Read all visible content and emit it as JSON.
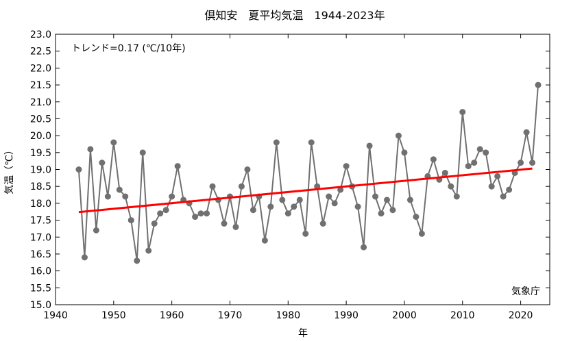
{
  "chart_data": {
    "type": "line",
    "title": "倶知安　夏平均気温　1944-2023年",
    "xlabel": "年",
    "ylabel": "気温（℃）",
    "xlim": [
      1940,
      2025
    ],
    "ylim": [
      15.0,
      23.0
    ],
    "x_ticks": [
      1940,
      1950,
      1960,
      1970,
      1980,
      1990,
      2000,
      2010,
      2020
    ],
    "y_ticks": [
      "15.0",
      "15.5",
      "16.0",
      "16.5",
      "17.0",
      "17.5",
      "18.0",
      "18.5",
      "19.0",
      "19.5",
      "20.0",
      "20.5",
      "21.0",
      "21.5",
      "22.0",
      "22.5",
      "23.0"
    ],
    "grid": false,
    "series_color": "#707070",
    "trend_color": "#ff0000",
    "trend_label": "トレンド=0.17 (℃/10年)",
    "trend_rate_per_decade": 0.17,
    "source_label": "気象庁",
    "x": [
      1944,
      1945,
      1946,
      1947,
      1948,
      1949,
      1950,
      1951,
      1952,
      1953,
      1954,
      1955,
      1956,
      1957,
      1958,
      1959,
      1960,
      1961,
      1962,
      1963,
      1964,
      1965,
      1966,
      1967,
      1968,
      1969,
      1970,
      1971,
      1972,
      1973,
      1974,
      1975,
      1976,
      1977,
      1978,
      1979,
      1980,
      1981,
      1982,
      1983,
      1984,
      1985,
      1986,
      1987,
      1988,
      1989,
      1990,
      1991,
      1992,
      1993,
      1994,
      1995,
      1996,
      1997,
      1998,
      1999,
      2000,
      2001,
      2002,
      2003,
      2004,
      2005,
      2006,
      2007,
      2008,
      2009,
      2010,
      2011,
      2012,
      2013,
      2014,
      2015,
      2016,
      2017,
      2018,
      2019,
      2020,
      2021,
      2022,
      2023
    ],
    "values": [
      19.0,
      16.4,
      19.6,
      17.2,
      19.2,
      18.2,
      19.8,
      18.4,
      18.2,
      17.5,
      16.3,
      19.5,
      16.6,
      17.4,
      17.7,
      17.8,
      18.2,
      19.1,
      18.1,
      18.0,
      17.6,
      17.7,
      17.7,
      18.5,
      18.1,
      17.4,
      18.2,
      17.3,
      18.5,
      19.0,
      17.8,
      18.2,
      16.9,
      17.9,
      19.8,
      18.1,
      17.7,
      17.9,
      18.1,
      17.1,
      19.8,
      18.5,
      17.4,
      18.2,
      18.0,
      18.4,
      19.1,
      18.5,
      17.9,
      16.7,
      19.7,
      18.2,
      17.7,
      18.1,
      17.8,
      20.0,
      19.5,
      18.1,
      17.6,
      17.1,
      18.8,
      19.3,
      18.7,
      18.9,
      18.5,
      18.2,
      20.7,
      19.1,
      19.2,
      19.6,
      19.5,
      18.5,
      18.8,
      18.2,
      18.4,
      18.9,
      19.2,
      20.1,
      19.2,
      21.5
    ]
  }
}
